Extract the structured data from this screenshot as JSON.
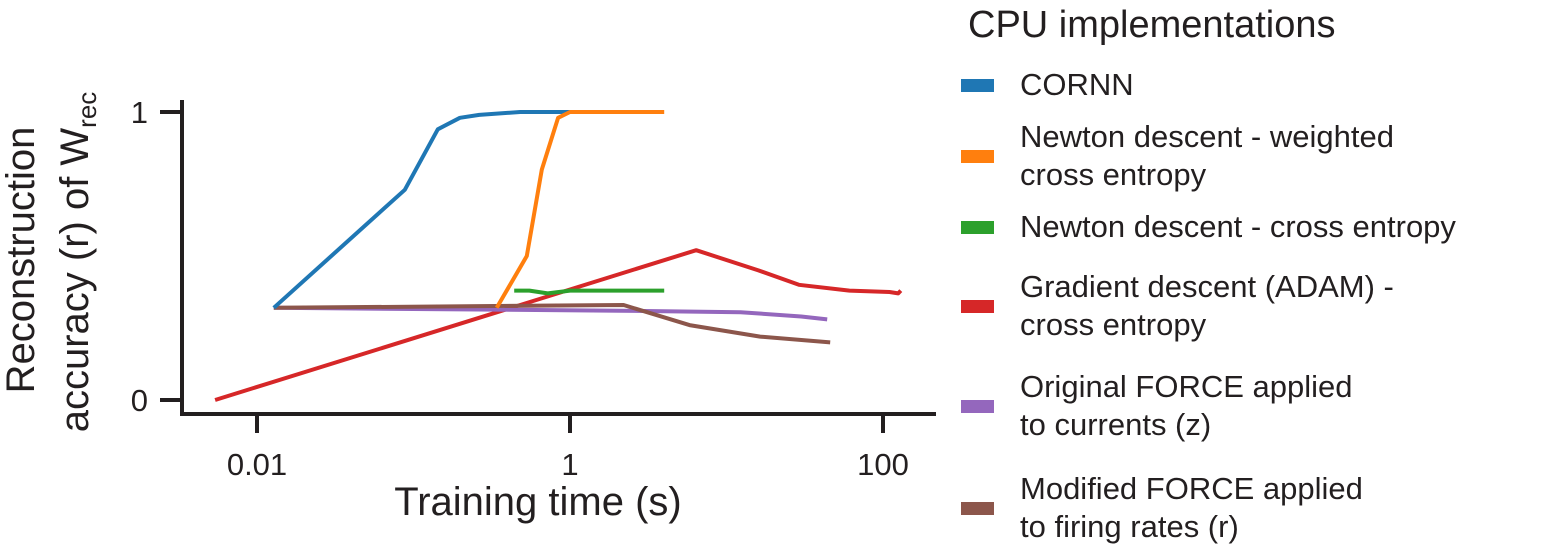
{
  "chart_data": {
    "type": "line",
    "title": "",
    "xlabel": "Training time (s)",
    "ylabel_line1": "Reconstruction",
    "ylabel_line2": "accuracy (r) of W",
    "ylabel_subscript": "rec",
    "xscale": "log",
    "xlim": [
      0.003,
      250
    ],
    "ylim": [
      -0.04,
      1.0
    ],
    "xticks": [
      0.01,
      1,
      100
    ],
    "xtick_labels": [
      "0.01",
      "1",
      "100"
    ],
    "yticks": [
      0,
      1
    ],
    "ytick_labels": [
      "0",
      "1"
    ],
    "grid": false,
    "legend": {
      "title": "CPU implementations",
      "placement": "right"
    },
    "series": [
      {
        "name": "CORNN",
        "label_lines": [
          "CORNN"
        ],
        "color": "#1f77b4",
        "x": [
          0.0128,
          0.088,
          0.143,
          0.198,
          0.263,
          0.48,
          1.08
        ],
        "y": [
          0.32,
          0.73,
          0.94,
          0.98,
          0.99,
          1.0,
          1.0
        ]
      },
      {
        "name": "Newton descent - weighted cross entropy",
        "label_lines": [
          "Newton descent - weighted",
          "cross entropy"
        ],
        "color": "#ff7f0e",
        "x": [
          0.34,
          0.53,
          0.66,
          0.84,
          1.0,
          4.0
        ],
        "y": [
          0.32,
          0.5,
          0.8,
          0.98,
          1.0,
          1.0
        ]
      },
      {
        "name": "Newton descent - cross entropy",
        "label_lines": [
          "Newton descent - cross entropy"
        ],
        "color": "#2ca02c",
        "x": [
          0.44,
          0.55,
          0.72,
          1.0,
          4.0
        ],
        "y": [
          0.38,
          0.38,
          0.37,
          0.38,
          0.38
        ]
      },
      {
        "name": "Gradient descent (ADAM) - cross entropy",
        "label_lines": [
          "Gradient descent (ADAM) -",
          "cross entropy"
        ],
        "color": "#d62728",
        "x": [
          0.0054,
          6.4,
          16,
          29,
          61,
          110,
          125,
          130
        ],
        "y": [
          0.0,
          0.52,
          0.45,
          0.4,
          0.38,
          0.375,
          0.37,
          0.38
        ]
      },
      {
        "name": "Original FORCE applied to currents (z)",
        "label_lines": [
          "Original FORCE applied",
          "to currents (z)"
        ],
        "color": "#9467bd",
        "x": [
          0.0128,
          2.1,
          12.3,
          30,
          44
        ],
        "y": [
          0.32,
          0.31,
          0.305,
          0.29,
          0.28
        ]
      },
      {
        "name": "Modified FORCE applied to firing rates (r)",
        "label_lines": [
          "Modified FORCE applied",
          "to firing rates (r)"
        ],
        "color": "#8c564b",
        "x": [
          0.0128,
          2.2,
          5.8,
          16.4,
          46
        ],
        "y": [
          0.32,
          0.33,
          0.26,
          0.22,
          0.2
        ]
      }
    ]
  }
}
